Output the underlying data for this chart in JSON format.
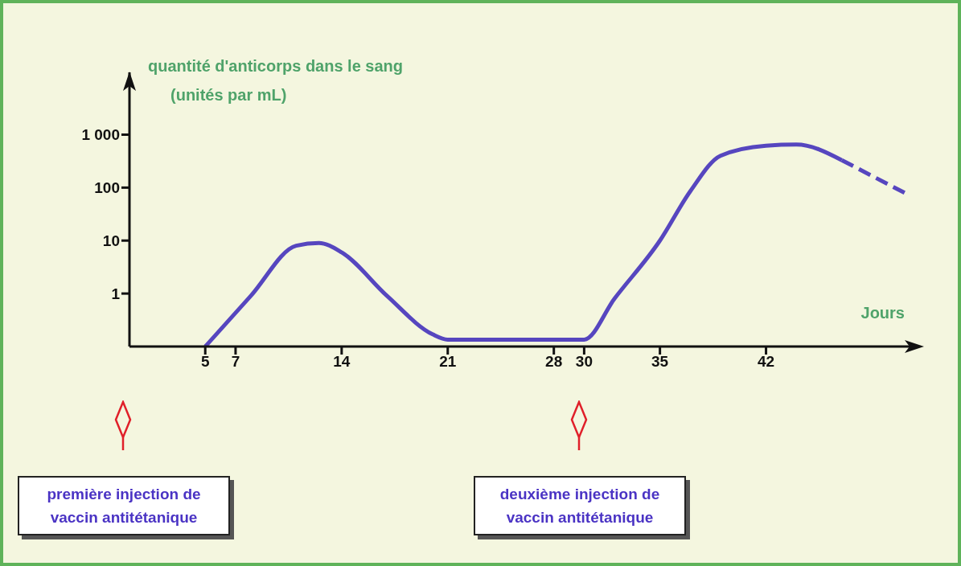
{
  "chart_data": {
    "type": "line",
    "ylabel": "quantité d'anticorps dans le sang (unités par mL)",
    "xlabel": "Jours",
    "log": "y",
    "xlim": [
      0,
      52
    ],
    "xticks": [
      5,
      7,
      14,
      21,
      28,
      30,
      35,
      42
    ],
    "ylim": [
      0.1,
      15000
    ],
    "yticks": [
      {
        "value": 1000,
        "label": "1 000"
      },
      100,
      10,
      1
    ],
    "marker": "none",
    "series": [
      {
        "color": "#5646bf",
        "line_style": "solid",
        "x": [
          5,
          8,
          11,
          12.5,
          14,
          17,
          20,
          21,
          30,
          32,
          35,
          37,
          39,
          42,
          44,
          47
        ],
        "values": [
          0.1,
          0.9,
          8,
          9,
          6,
          0.9,
          0.17,
          0.135,
          0.135,
          0.8,
          10,
          85,
          400,
          620,
          650,
          330
        ]
      },
      {
        "color": "#5646bf",
        "line_style": "dashed",
        "x": [
          47,
          51.4
        ],
        "values": [
          330,
          73
        ]
      }
    ],
    "annotations": [
      "première injection de vaccin antitétanique",
      "deuxième injection de vaccin antitétanique"
    ]
  }
}
